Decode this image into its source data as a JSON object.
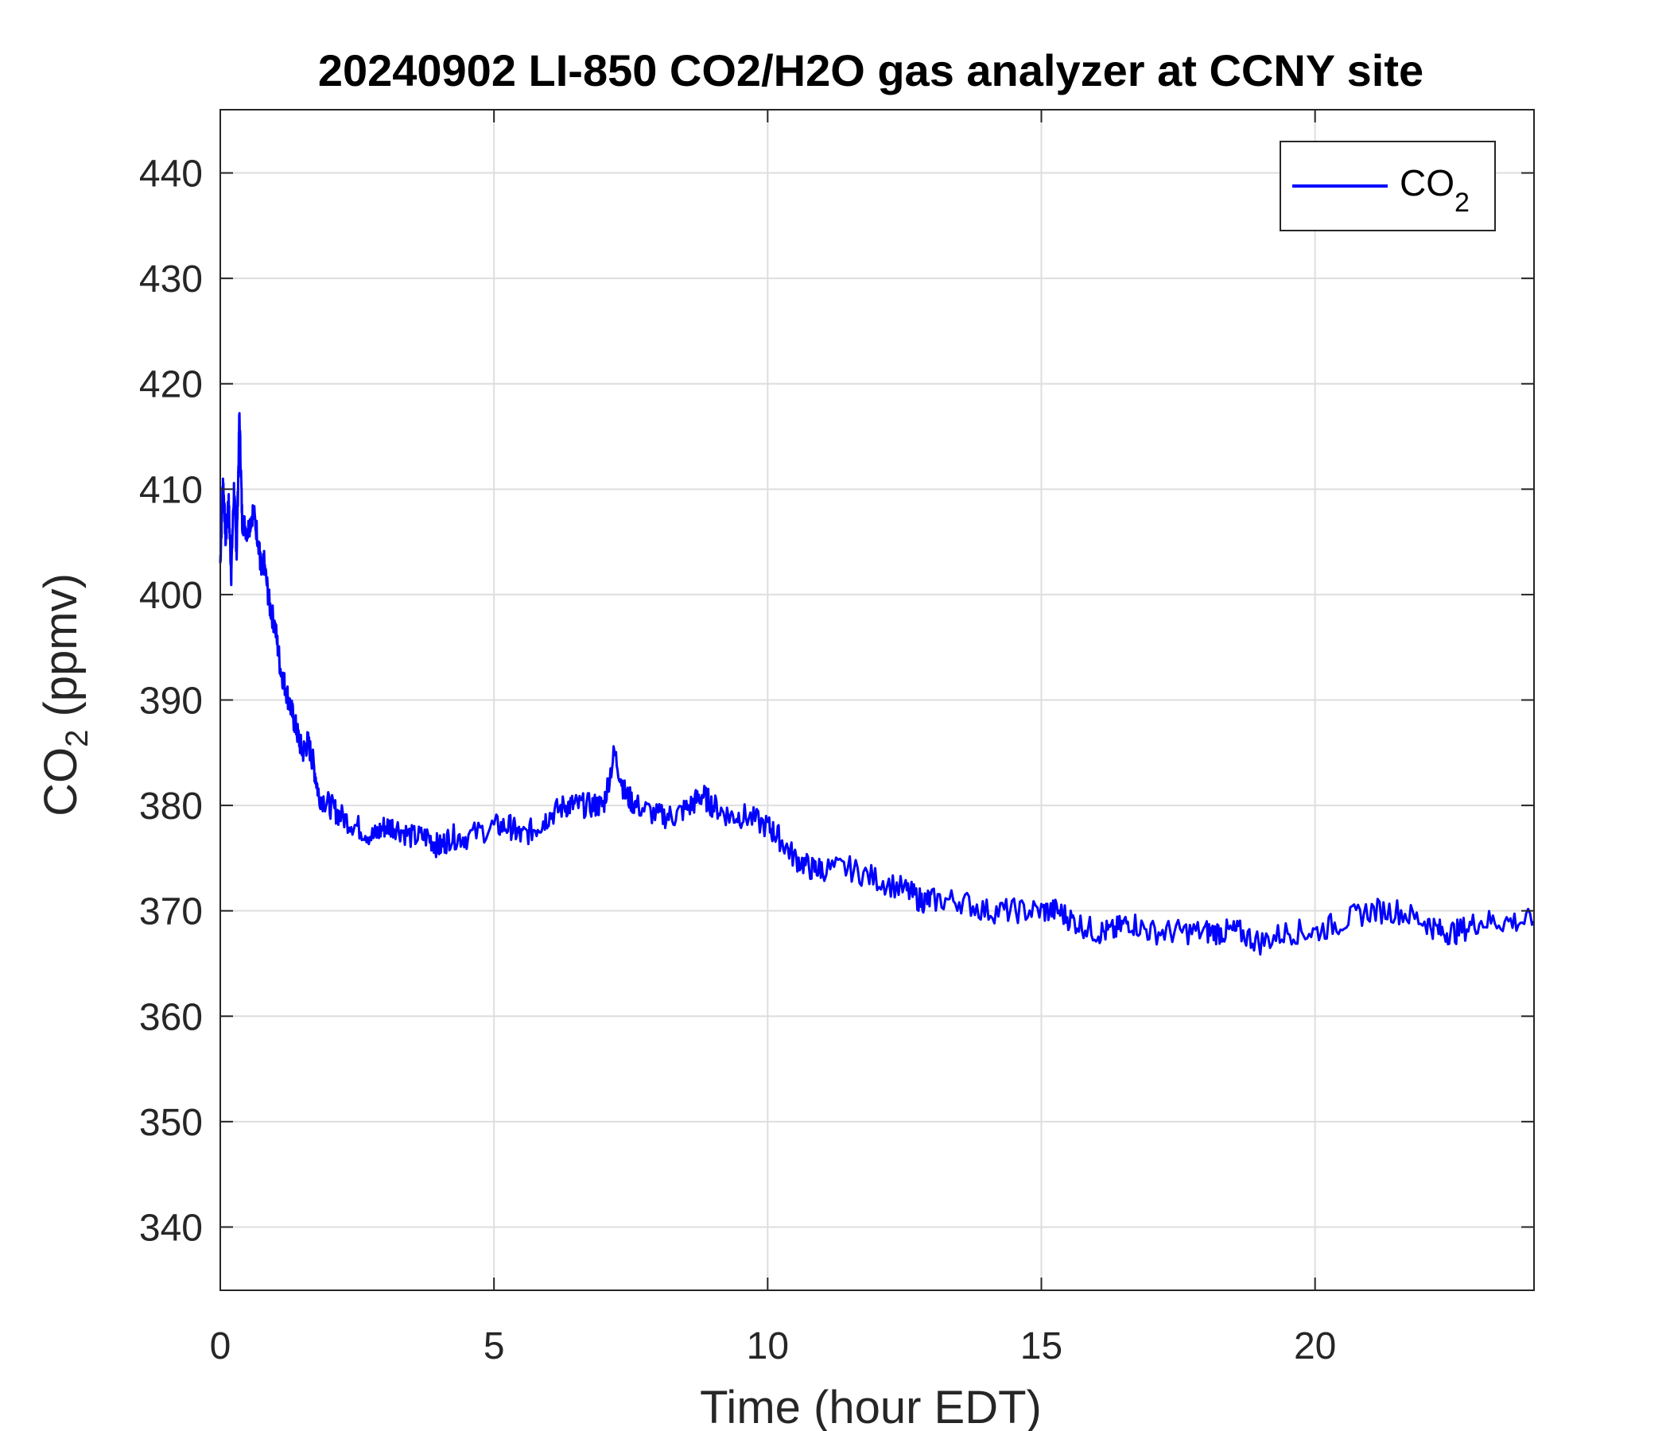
{
  "chart_data": {
    "type": "line",
    "title": "20240902 LI-850 CO2/H2O gas analyzer at CCNY site",
    "xlabel": "Time (hour EDT)",
    "ylabel": {
      "main": "CO",
      "sub": "2",
      "rest": " (ppmv)"
    },
    "xlim": [
      0,
      24
    ],
    "ylim": [
      334,
      446
    ],
    "xticks": [
      0,
      5,
      10,
      15,
      20
    ],
    "yticks": [
      340,
      350,
      360,
      370,
      380,
      390,
      400,
      410,
      420,
      430,
      440
    ],
    "grid": true,
    "legend_position": "top-right",
    "series": [
      {
        "name": {
          "main": "CO",
          "sub": "2"
        },
        "color": "#0000ff",
        "x": [
          0,
          0.05,
          0.1,
          0.15,
          0.2,
          0.25,
          0.3,
          0.35,
          0.4,
          0.5,
          0.6,
          0.7,
          0.75,
          0.8,
          0.9,
          1.0,
          1.1,
          1.2,
          1.3,
          1.4,
          1.5,
          1.6,
          1.7,
          1.8,
          2.0,
          2.2,
          2.5,
          2.8,
          3.0,
          3.2,
          3.5,
          3.8,
          4.0,
          4.2,
          4.5,
          5.0,
          5.3,
          5.5,
          5.8,
          6.0,
          6.3,
          6.5,
          6.8,
          7.0,
          7.2,
          7.4,
          7.6,
          8.0,
          8.3,
          8.6,
          8.8,
          9.0,
          9.3,
          9.6,
          10.0,
          10.2,
          10.5,
          10.8,
          11.0,
          11.5,
          12.0,
          12.5,
          12.8,
          13.0,
          13.5,
          14.0,
          14.5,
          15.0,
          15.3,
          15.6,
          16.0,
          16.3,
          16.6,
          17.0,
          17.5,
          18.0,
          18.3,
          18.6,
          19.0,
          19.5,
          20.0,
          20.5,
          21.0,
          21.5,
          22.0,
          22.3,
          22.6,
          23.0,
          23.5,
          24.0
        ],
        "y": [
          403,
          411,
          405,
          409,
          402,
          410,
          404,
          417,
          407,
          406,
          408,
          405,
          402,
          403,
          399,
          397,
          393,
          391,
          389,
          387,
          385,
          386,
          384,
          381,
          380,
          379,
          378,
          377,
          378,
          378,
          377,
          377,
          376,
          377,
          377,
          378,
          378,
          377,
          378,
          379,
          380,
          380,
          380,
          380,
          385,
          381,
          380,
          379,
          379,
          380,
          381,
          380,
          379,
          379,
          378,
          377,
          375,
          374,
          374,
          374,
          373,
          372,
          371,
          371,
          371,
          370,
          370,
          370,
          370,
          369,
          368,
          368,
          369,
          368,
          368,
          368,
          368,
          368,
          367,
          368,
          368,
          369,
          370,
          370,
          369,
          368,
          368,
          369,
          369,
          369
        ]
      }
    ]
  }
}
